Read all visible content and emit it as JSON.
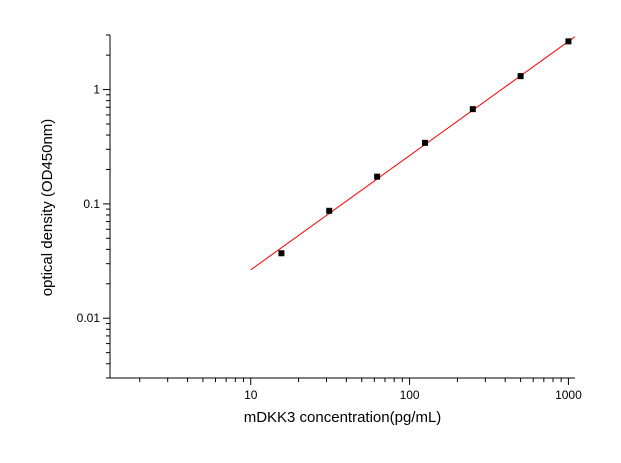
{
  "chart_data": {
    "type": "scatter",
    "title": "",
    "xlabel": "mDKK3 concentration(pg/mL)",
    "ylabel": "optical density (OD450nm)",
    "x_scale": "log",
    "y_scale": "log",
    "xlim": [
      1.3,
      1100
    ],
    "ylim": [
      0.003,
      3.0
    ],
    "x_ticks": [
      {
        "value": 10,
        "label": "10"
      },
      {
        "value": 100,
        "label": "100"
      },
      {
        "value": 1000,
        "label": "1000"
      }
    ],
    "y_ticks": [
      {
        "value": 0.01,
        "label": "0.01"
      },
      {
        "value": 0.1,
        "label": "0.1"
      },
      {
        "value": 1,
        "label": "1"
      }
    ],
    "grid": false,
    "legend": "none",
    "series": [
      {
        "x": [
          15.6,
          31.2,
          62.5,
          125,
          250,
          500,
          1000
        ],
        "y": [
          0.037,
          0.087,
          0.173,
          0.342,
          0.674,
          1.31,
          2.64
        ],
        "color": "#000000",
        "marker": "square"
      }
    ],
    "fit_line": {
      "x": [
        10,
        1100
      ],
      "y": [
        0.0265,
        2.9
      ],
      "color": "#ff0000"
    }
  }
}
